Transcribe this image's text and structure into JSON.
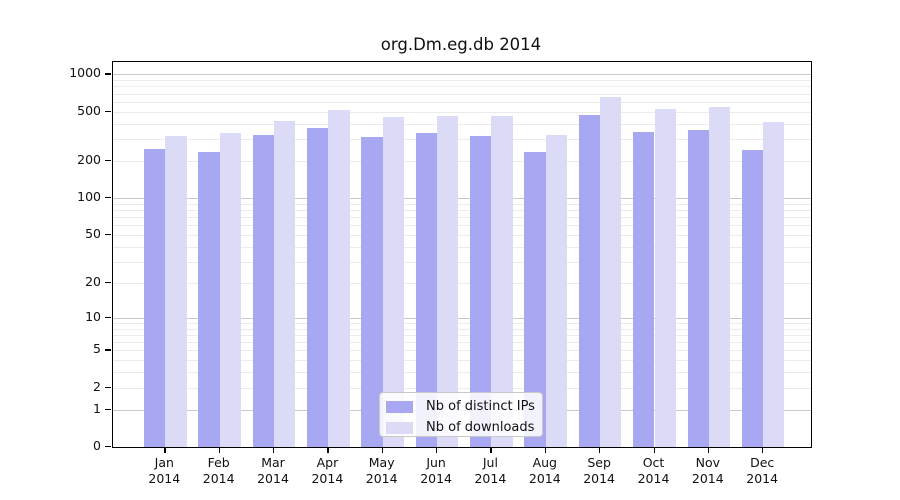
{
  "chart_data": {
    "type": "bar",
    "title": "org.Dm.eg.db 2014",
    "categories": [
      "Jan",
      "Feb",
      "Mar",
      "Apr",
      "May",
      "Jun",
      "Jul",
      "Aug",
      "Sep",
      "Oct",
      "Nov",
      "Dec"
    ],
    "x_tick_second_line": "2014",
    "series": [
      {
        "name": "Nb of distinct IPs",
        "color": "#a8a8f2",
        "values": [
          250,
          237,
          322,
          368,
          315,
          335,
          318,
          236,
          470,
          343,
          358,
          245
        ]
      },
      {
        "name": "Nb of downloads",
        "color": "#dbdbf8",
        "values": [
          320,
          338,
          420,
          517,
          453,
          461,
          461,
          326,
          658,
          528,
          549,
          415
        ]
      }
    ],
    "y_axis": {
      "scale": "log10(value+1), 0 at baseline",
      "tick_values": [
        0,
        1,
        2,
        5,
        10,
        20,
        50,
        100,
        200,
        500,
        1000
      ],
      "tick_labels": [
        "0",
        "1",
        "2",
        "5",
        "10",
        "20",
        "50",
        "100",
        "200",
        "500",
        "1000"
      ],
      "top_value": 1250
    },
    "grid": {
      "horizontal": true,
      "minor_multiples": [
        2,
        3,
        4,
        5,
        6,
        7,
        8,
        9
      ],
      "major_decades": [
        1,
        10,
        100,
        1000
      ]
    },
    "legend_position": "bottom-center-inside"
  },
  "colors": {
    "bar_distinct_ips": "#a8a8f2",
    "bar_downloads": "#dbdbf8",
    "grid_minor": "#ebebeb",
    "grid_major": "#c9c9c9",
    "axis": "#000000",
    "legend_border": "#c8c8c8",
    "background": "#ffffff"
  }
}
